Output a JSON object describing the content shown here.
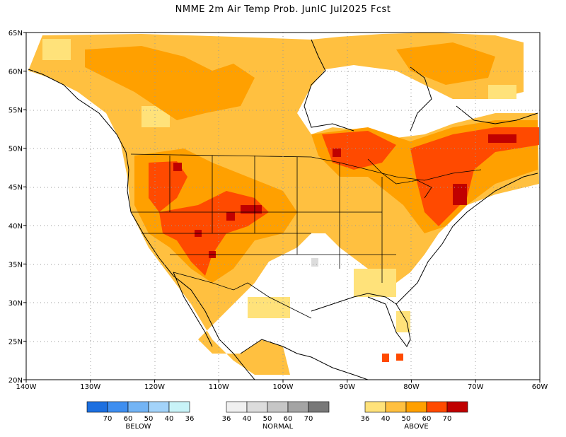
{
  "title": "NMME 2m Air Temp Prob. JunIC  Jul2025 Fcst",
  "axes": {
    "lon_labels": [
      "140W",
      "130W",
      "120W",
      "110W",
      "100W",
      "90W",
      "80W",
      "70W",
      "60W"
    ],
    "lat_labels": [
      "65N",
      "60N",
      "55N",
      "50N",
      "45N",
      "40N",
      "35N",
      "30N",
      "25N",
      "20N"
    ]
  },
  "legend": {
    "below": {
      "name": "BELOW",
      "tick_labels": [
        "70",
        "60",
        "50",
        "40",
        "36"
      ],
      "colors": [
        "#1c6fe0",
        "#3e8ef0",
        "#73b4f5",
        "#a3d3fa",
        "#c8f3f8"
      ]
    },
    "normal": {
      "name": "NORMAL",
      "tick_labels": [
        "36",
        "40",
        "50",
        "60",
        "70"
      ],
      "colors": [
        "#f0f0f0",
        "#dcdcdc",
        "#c6c6c6",
        "#a4a4a4",
        "#787878"
      ]
    },
    "above": {
      "name": "ABOVE",
      "tick_labels": [
        "36",
        "40",
        "50",
        "60",
        "70"
      ],
      "colors": [
        "#ffe27a",
        "#ffc040",
        "#ffa000",
        "#ff4a00",
        "#c00000"
      ]
    }
  }
}
